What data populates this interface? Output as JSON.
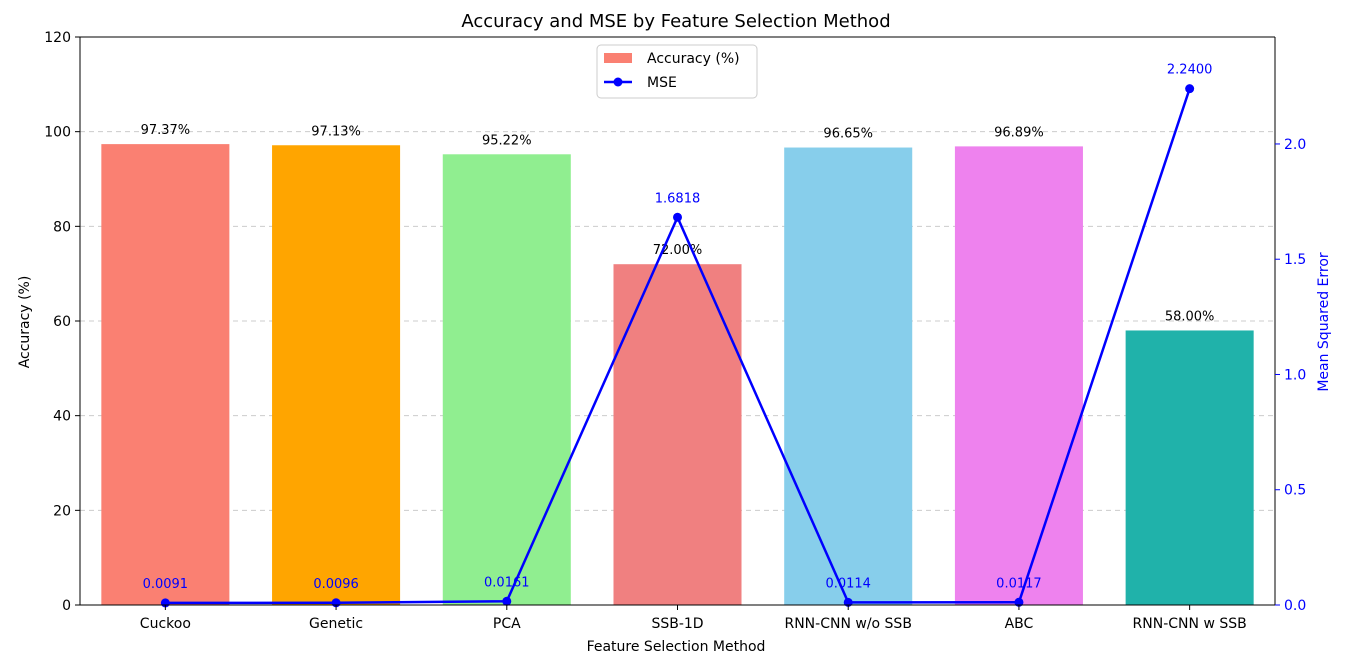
{
  "chart_data": {
    "type": "bar",
    "title": "Accuracy and MSE by Feature Selection Method",
    "xlabel": "Feature Selection Method",
    "ylabel": "Accuracy (%)",
    "y2label": "Mean Squared Error",
    "ylim": [
      0,
      120
    ],
    "y2lim": [
      0,
      2.464
    ],
    "yticks": [
      "0",
      "20",
      "40",
      "60",
      "80",
      "100",
      "120"
    ],
    "y2ticks": [
      "0.0",
      "0.5",
      "1.0",
      "1.5",
      "2.0"
    ],
    "grid": "horizontal dashed",
    "legend_position": "top-center",
    "categories": [
      "Cuckoo",
      "Genetic",
      "PCA",
      "SSB-1D",
      "RNN-CNN w/o SSB",
      "ABC",
      "RNN-CNN w SSB"
    ],
    "series": [
      {
        "name": "Accuracy (%)",
        "kind": "bar",
        "values": [
          97.37,
          97.13,
          95.22,
          72.0,
          96.65,
          96.89,
          58.0
        ],
        "labels": [
          "97.37%",
          "97.13%",
          "95.22%",
          "72.00%",
          "96.65%",
          "96.89%",
          "58.00%"
        ],
        "colors": [
          "#fa8072",
          "#ffa500",
          "#90ee90",
          "#f08080",
          "#87ceeb",
          "#ee82ee",
          "#20b2aa"
        ]
      },
      {
        "name": "MSE",
        "kind": "line",
        "axis": "right",
        "color": "#0000ff",
        "values": [
          0.0091,
          0.0096,
          0.0161,
          1.6818,
          0.0114,
          0.0117,
          2.24
        ],
        "labels": [
          "0.0091",
          "0.0096",
          "0.0161",
          "1.6818",
          "0.0114",
          "0.0117",
          "2.2400"
        ]
      }
    ]
  }
}
